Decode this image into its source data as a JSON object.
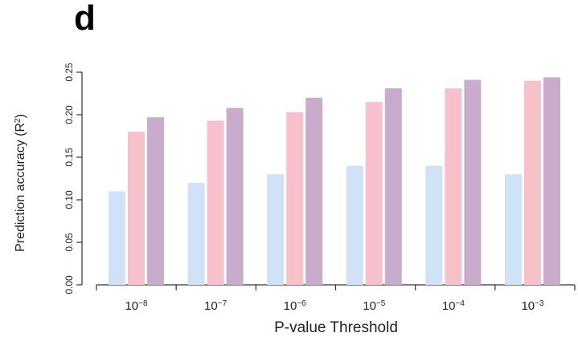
{
  "panel_label": "d",
  "chart_data": {
    "type": "bar",
    "title": "",
    "xlabel": "P-value Threshold",
    "ylabel": "Prediction accuracy (R",
    "ylabel_sup": "2",
    "ylabel_close": ")",
    "categories": [
      {
        "base": "10",
        "exp": "−8"
      },
      {
        "base": "10",
        "exp": "−7"
      },
      {
        "base": "10",
        "exp": "−6"
      },
      {
        "base": "10",
        "exp": "−5"
      },
      {
        "base": "10",
        "exp": "−4"
      },
      {
        "base": "10",
        "exp": "−3"
      }
    ],
    "series": [
      {
        "color": "#cfe2f7",
        "values": [
          0.11,
          0.12,
          0.13,
          0.14,
          0.14,
          0.13
        ]
      },
      {
        "color": "#f7c1cc",
        "values": [
          0.18,
          0.193,
          0.203,
          0.215,
          0.231,
          0.24
        ]
      },
      {
        "color": "#c9abcb",
        "values": [
          0.197,
          0.208,
          0.22,
          0.231,
          0.241,
          0.244
        ]
      }
    ],
    "ylim": [
      0,
      0.25
    ],
    "yticks": [
      "0.00",
      "0.05",
      "0.10",
      "0.15",
      "0.20",
      "0.25"
    ],
    "grid": false,
    "legend": "none"
  }
}
